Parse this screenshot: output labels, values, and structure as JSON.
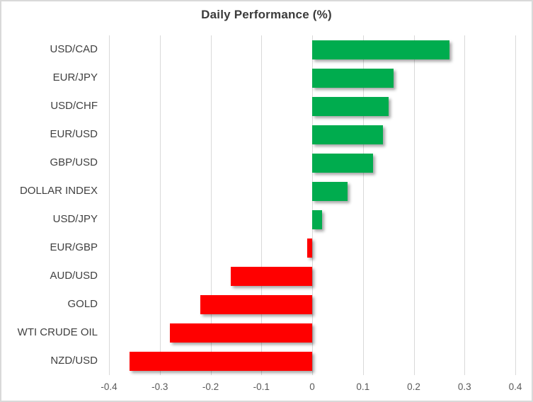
{
  "chart_data": {
    "type": "bar",
    "orientation": "horizontal",
    "title": "Daily Performance (%)",
    "categories": [
      "USD/CAD",
      "EUR/JPY",
      "USD/CHF",
      "EUR/USD",
      "GBP/USD",
      "DOLLAR INDEX",
      "USD/JPY",
      "EUR/GBP",
      "AUD/USD",
      "GOLD",
      "WTI CRUDE OIL",
      "NZD/USD"
    ],
    "values": [
      0.27,
      0.16,
      0.15,
      0.14,
      0.12,
      0.07,
      0.02,
      -0.01,
      -0.16,
      -0.22,
      -0.28,
      -0.36
    ],
    "xlabel": "",
    "ylabel": "",
    "xlim": [
      -0.4,
      0.4
    ],
    "x_tick_labels": [
      "-0.4",
      "-0.3",
      "-0.2",
      "-0.1",
      "0",
      "0.1",
      "0.2",
      "0.3",
      "0.4"
    ],
    "grid": true,
    "legend": false,
    "colors": {
      "positive": "#00AC4E",
      "negative": "#FF0000",
      "gridline": "#D9D9D9",
      "title_text": "#3B3B3B",
      "category_text": "#404040",
      "tick_text": "#595959",
      "frame_border": "#D9D9D9"
    }
  }
}
